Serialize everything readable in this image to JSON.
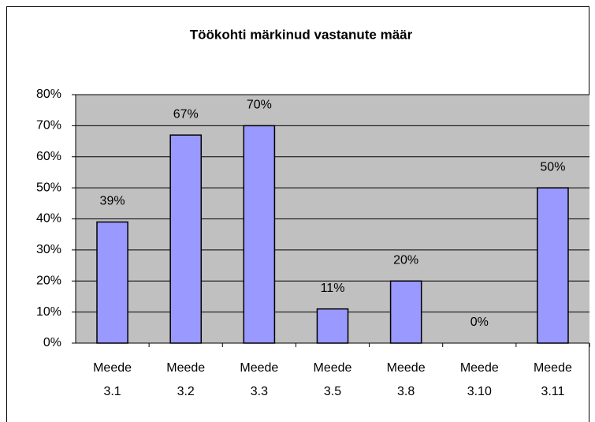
{
  "chart_data": {
    "type": "bar",
    "title": "Töökohti märkinud vastanute määr",
    "categories": [
      "Meede 3.1",
      "Meede 3.2",
      "Meede 3.3",
      "Meede 3.5",
      "Meede 3.8",
      "Meede 3.10",
      "Meede 3.11"
    ],
    "values": [
      39,
      67,
      70,
      11,
      20,
      0,
      50
    ],
    "value_labels": [
      "39%",
      "67%",
      "70%",
      "11%",
      "20%",
      "0%",
      "50%"
    ],
    "color": "#9999ff",
    "ylim": [
      0,
      80
    ],
    "yticks": [
      {
        "value": 0,
        "label": "0%"
      },
      {
        "value": 10,
        "label": "10%"
      },
      {
        "value": 20,
        "label": "20%"
      },
      {
        "value": 30,
        "label": "30%"
      },
      {
        "value": 40,
        "label": "40%"
      },
      {
        "value": 50,
        "label": "50%"
      },
      {
        "value": 60,
        "label": "60%"
      },
      {
        "value": 70,
        "label": "70%"
      },
      {
        "value": 80,
        "label": "80%"
      }
    ],
    "grid": true
  }
}
